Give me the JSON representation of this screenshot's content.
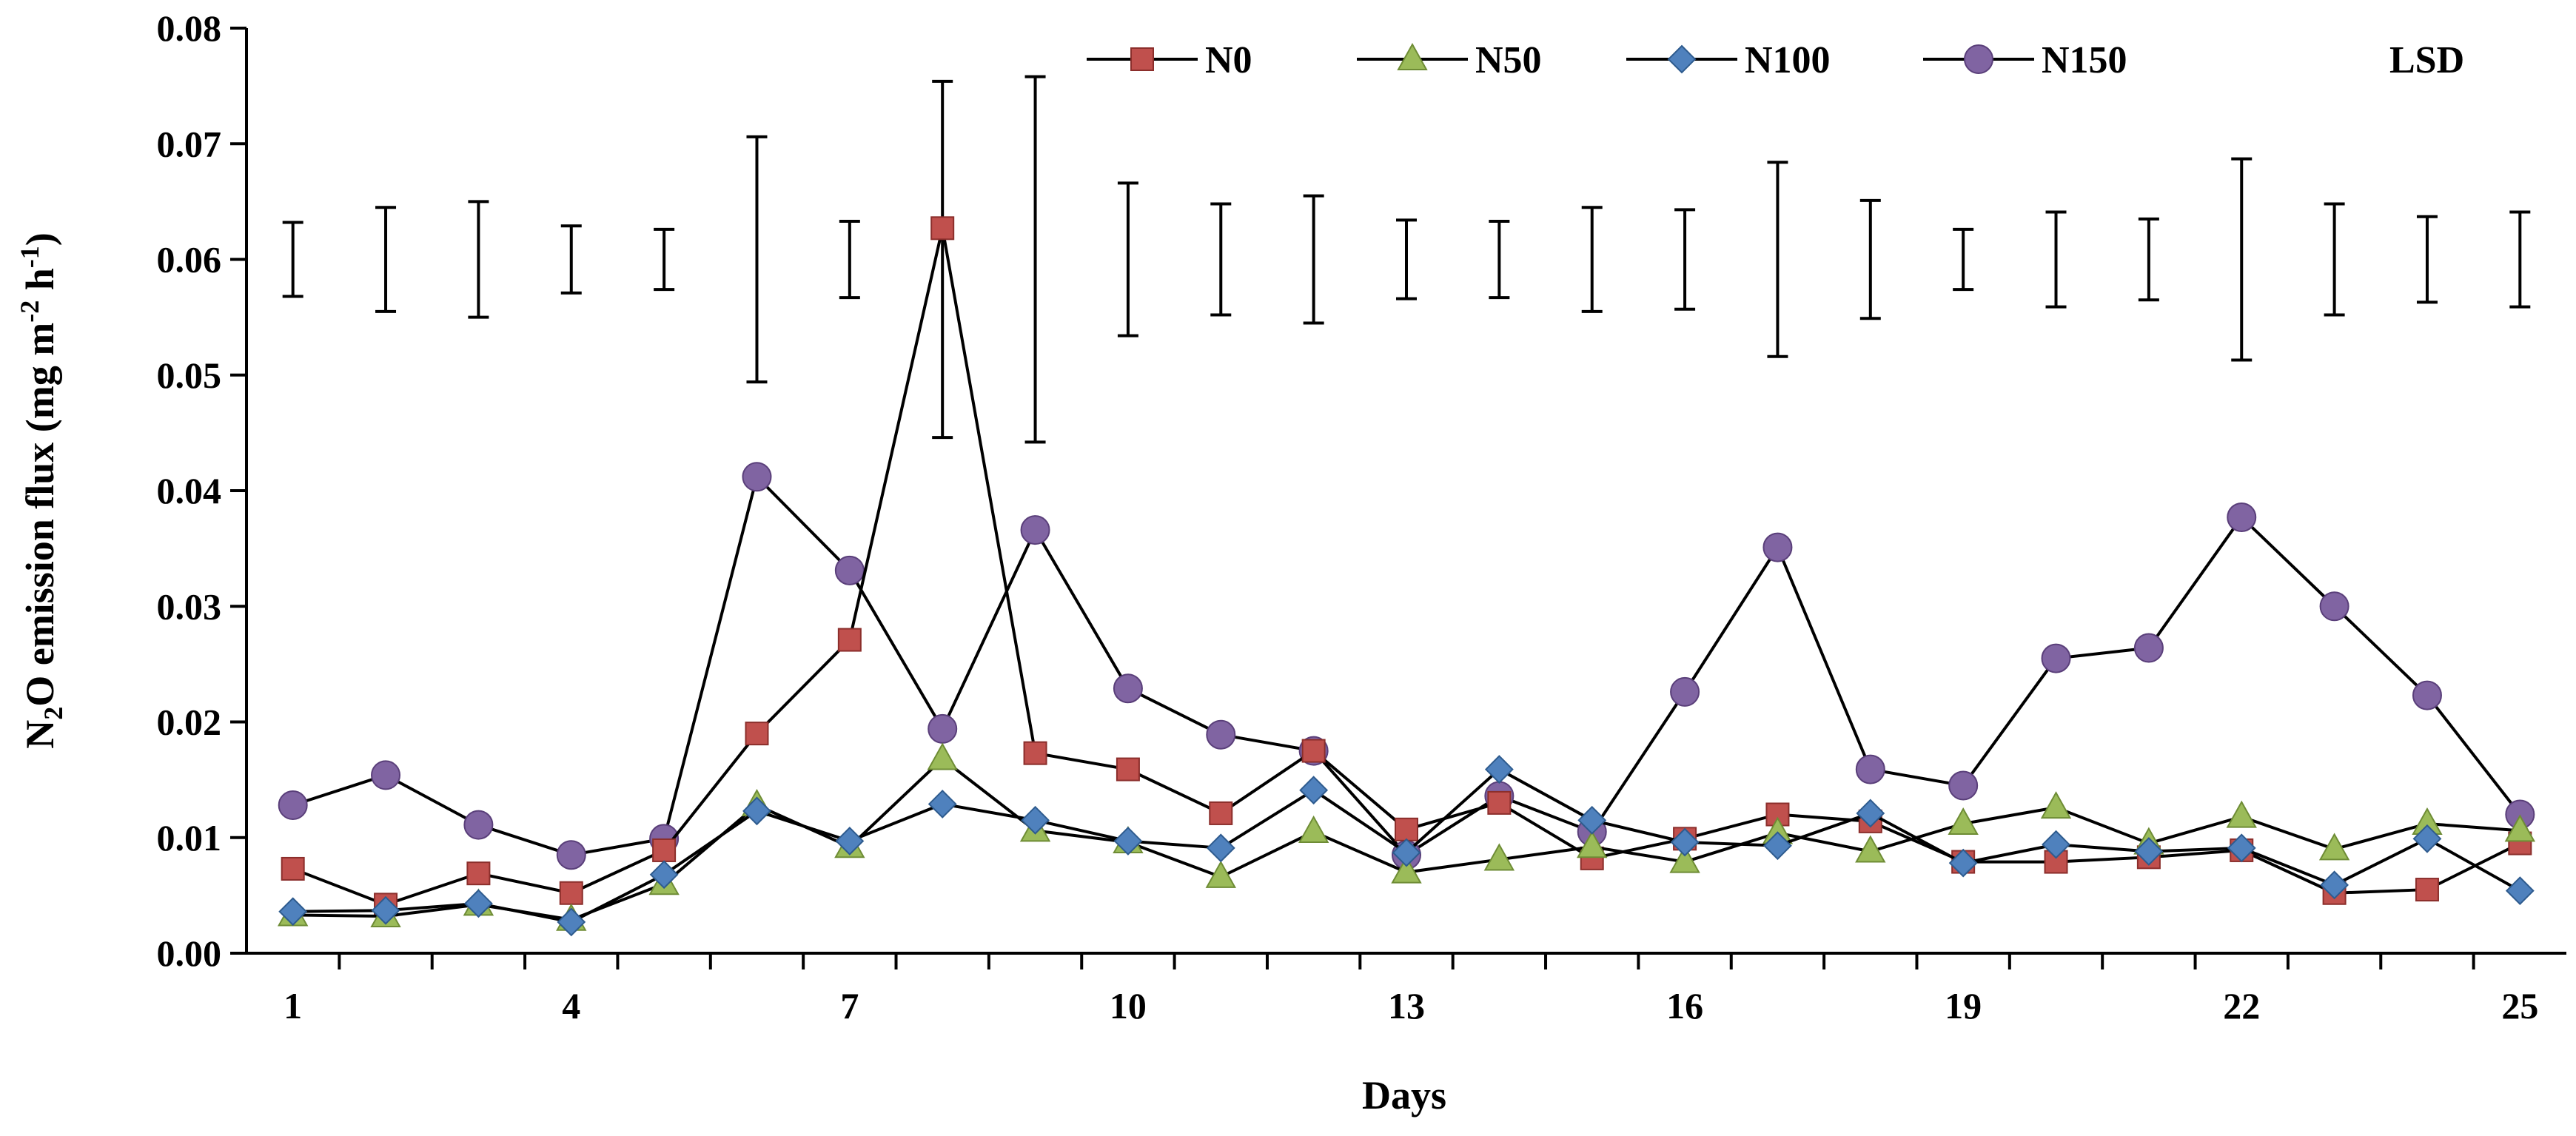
{
  "chart_data": {
    "type": "line",
    "title": "",
    "xlabel": "Days",
    "ylabel": {
      "prefix": "N",
      "sub": "2",
      "middle": "O emission flux  (mg m",
      "sup1": "-2",
      "middle2": " h",
      "sup2": "-1",
      "suffix": ")"
    },
    "xlim": [
      0.5,
      25.5
    ],
    "ylim": [
      0,
      0.08
    ],
    "x_ticks": [
      1,
      4,
      7,
      10,
      13,
      16,
      19,
      22,
      25
    ],
    "y_ticks": [
      "0.00",
      "0.01",
      "0.02",
      "0.03",
      "0.04",
      "0.05",
      "0.06",
      "0.07",
      "0.08"
    ],
    "x": [
      1,
      2,
      3,
      4,
      5,
      6,
      7,
      8,
      9,
      10,
      11,
      12,
      13,
      14,
      15,
      16,
      17,
      18,
      19,
      20,
      21,
      22,
      23,
      24,
      25
    ],
    "series": [
      {
        "name": "N0",
        "marker": "square",
        "color": "#C0504D",
        "stroke": "#8B2E2B",
        "values": [
          0.0073,
          0.0042,
          0.0069,
          0.0052,
          0.0089,
          0.019,
          0.0271,
          0.0627,
          0.0173,
          0.0159,
          0.0121,
          0.0175,
          0.0107,
          0.013,
          0.0082,
          0.0099,
          0.012,
          0.0114,
          0.0079,
          0.0079,
          0.0083,
          0.0089,
          0.0052,
          0.0055,
          0.0095
        ]
      },
      {
        "name": "N50",
        "marker": "triangle",
        "color": "#9BBB59",
        "stroke": "#6E8C35",
        "values": [
          0.0033,
          0.0032,
          0.0042,
          0.0029,
          0.006,
          0.0128,
          0.0092,
          0.0168,
          0.0106,
          0.0096,
          0.0066,
          0.0105,
          0.007,
          0.0081,
          0.0092,
          0.0079,
          0.0104,
          0.0088,
          0.0112,
          0.0126,
          0.0095,
          0.0118,
          0.009,
          0.0112,
          0.0106
        ]
      },
      {
        "name": "N100",
        "marker": "diamond",
        "color": "#4F81BD",
        "stroke": "#2E5B8E",
        "values": [
          0.0036,
          0.0037,
          0.0043,
          0.0027,
          0.0068,
          0.0123,
          0.0097,
          0.0129,
          0.0115,
          0.0097,
          0.0091,
          0.0141,
          0.0087,
          0.0159,
          0.0115,
          0.0096,
          0.0093,
          0.0121,
          0.0078,
          0.0094,
          0.0088,
          0.0091,
          0.0059,
          0.0099,
          0.0054
        ]
      },
      {
        "name": "N150",
        "marker": "circle",
        "color": "#8064A2",
        "stroke": "#5A3F7A",
        "values": [
          0.0128,
          0.0154,
          0.0111,
          0.0085,
          0.0099,
          0.0412,
          0.0331,
          0.0194,
          0.0366,
          0.0229,
          0.0189,
          0.0175,
          0.0085,
          0.0136,
          0.0105,
          0.0226,
          0.0351,
          0.0159,
          0.0145,
          0.0255,
          0.0264,
          0.0377,
          0.03,
          0.0223,
          0.012
        ]
      }
    ],
    "lsd": {
      "name": "LSD",
      "center": 0.06,
      "half_widths": [
        0.0032,
        0.0045,
        0.005,
        0.0029,
        0.0026,
        0.0106,
        0.0033,
        0.0154,
        0.0158,
        0.0066,
        0.0048,
        0.0055,
        0.0034,
        0.0033,
        0.0045,
        0.0043,
        0.0084,
        0.0051,
        0.0026,
        0.0041,
        0.0035,
        0.0087,
        0.0048,
        0.0037,
        0.0041
      ]
    },
    "legend_position": "top"
  }
}
